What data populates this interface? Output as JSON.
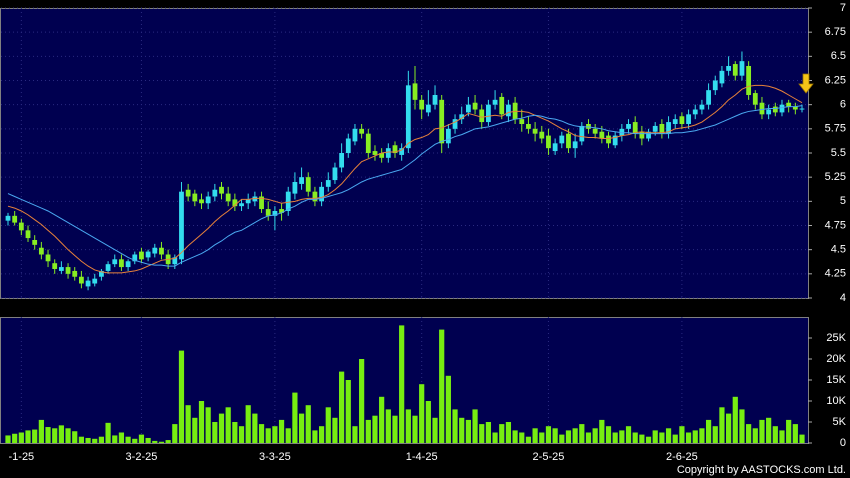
{
  "chart_data": [
    {
      "type": "candlestick",
      "categories": [
        null,
        null,
        "-1-25",
        null,
        null,
        null,
        null,
        null,
        null,
        null,
        null,
        null,
        null,
        null,
        null,
        null,
        null,
        null,
        null,
        null,
        "3-2-25",
        null,
        null,
        null,
        null,
        null,
        null,
        null,
        null,
        null,
        null,
        null,
        null,
        null,
        null,
        null,
        null,
        null,
        null,
        null,
        "3-3-25",
        null,
        null,
        null,
        null,
        null,
        null,
        null,
        null,
        null,
        null,
        null,
        null,
        null,
        null,
        null,
        null,
        null,
        null,
        null,
        null,
        null,
        "1-4-25",
        null,
        null,
        null,
        null,
        null,
        null,
        null,
        null,
        null,
        null,
        null,
        null,
        null,
        null,
        null,
        null,
        null,
        null,
        "2-5-25",
        null,
        null,
        null,
        null,
        null,
        null,
        null,
        null,
        null,
        null,
        null,
        null,
        null,
        null,
        null,
        null,
        null,
        null,
        null,
        "2-6-25",
        null,
        null,
        null,
        null,
        null,
        null,
        null,
        null,
        null,
        null,
        null,
        null,
        null,
        null,
        null,
        null,
        null,
        null
      ],
      "open": [
        4.8,
        4.85,
        4.78,
        4.7,
        4.6,
        4.52,
        4.45,
        4.36,
        4.28,
        4.32,
        4.28,
        4.22,
        4.12,
        4.15,
        4.22,
        4.28,
        4.35,
        4.4,
        4.32,
        4.38,
        4.48,
        4.42,
        4.46,
        4.52,
        4.45,
        4.35,
        4.4,
        5.12,
        5.08,
        5.02,
        4.98,
        5.05,
        5.15,
        5.08,
        5.02,
        4.95,
        4.98,
        5.0,
        5.05,
        4.92,
        4.85,
        4.92,
        4.9,
        5.08,
        5.18,
        5.25,
        5.1,
        5.0,
        5.15,
        5.22,
        5.35,
        5.5,
        5.62,
        5.75,
        5.7,
        5.52,
        5.5,
        5.45,
        5.58,
        5.48,
        5.55,
        6.22,
        6.05,
        5.92,
        6.0,
        6.05,
        5.6,
        5.75,
        5.85,
        5.92,
        6.02,
        5.95,
        5.82,
        6.0,
        6.08,
        5.88,
        6.02,
        5.85,
        5.8,
        5.75,
        5.72,
        5.68,
        5.52,
        5.6,
        5.7,
        5.55,
        5.62,
        5.8,
        5.75,
        5.72,
        5.68,
        5.58,
        5.68,
        5.75,
        5.82,
        5.72,
        5.65,
        5.72,
        5.8,
        5.7,
        5.8,
        5.88,
        5.8,
        5.9,
        5.95,
        6.0,
        6.15,
        6.22,
        6.35,
        6.42,
        6.3,
        6.4,
        6.12,
        6.02,
        5.9,
        5.98,
        5.92,
        6.02,
        5.98,
        5.95
      ],
      "high": [
        4.88,
        4.9,
        4.82,
        4.75,
        4.65,
        4.58,
        4.5,
        4.4,
        4.38,
        4.36,
        4.32,
        4.28,
        4.22,
        4.25,
        4.3,
        4.38,
        4.45,
        4.45,
        4.4,
        4.48,
        4.52,
        4.5,
        4.56,
        4.58,
        4.5,
        4.45,
        5.2,
        5.18,
        5.12,
        5.08,
        5.1,
        5.18,
        5.2,
        5.15,
        5.08,
        5.02,
        5.08,
        5.1,
        5.1,
        5.0,
        4.95,
        4.98,
        5.15,
        5.3,
        5.35,
        5.3,
        5.15,
        5.2,
        5.3,
        5.4,
        5.6,
        5.7,
        5.8,
        5.8,
        5.75,
        5.58,
        5.55,
        5.6,
        5.62,
        5.6,
        6.35,
        6.4,
        6.1,
        6.15,
        6.2,
        6.1,
        5.8,
        5.9,
        5.98,
        6.08,
        6.1,
        6.0,
        6.05,
        6.15,
        6.12,
        6.05,
        6.08,
        5.95,
        5.88,
        5.82,
        5.78,
        5.75,
        5.65,
        5.72,
        5.75,
        5.7,
        5.82,
        5.85,
        5.8,
        5.78,
        5.72,
        5.72,
        5.8,
        5.85,
        5.88,
        5.78,
        5.75,
        5.82,
        5.85,
        5.88,
        5.9,
        5.92,
        5.95,
        6.0,
        6.05,
        6.22,
        6.3,
        6.4,
        6.5,
        6.45,
        6.55,
        6.45,
        6.15,
        6.08,
        6.0,
        6.02,
        6.05,
        6.05,
        6.02,
        6.0
      ],
      "low": [
        4.75,
        4.75,
        4.65,
        4.58,
        4.5,
        4.4,
        4.32,
        4.25,
        4.25,
        4.2,
        4.18,
        4.1,
        4.08,
        4.12,
        4.18,
        4.25,
        4.32,
        4.28,
        4.28,
        4.35,
        4.36,
        4.38,
        4.42,
        4.4,
        4.3,
        4.3,
        4.35,
        5.0,
        4.95,
        4.92,
        4.92,
        5.0,
        5.02,
        4.95,
        4.9,
        4.9,
        4.92,
        4.95,
        4.88,
        4.8,
        4.7,
        4.8,
        4.85,
        5.02,
        5.12,
        5.05,
        4.95,
        4.95,
        5.1,
        5.18,
        5.3,
        5.45,
        5.58,
        5.65,
        5.45,
        5.42,
        5.4,
        5.4,
        5.45,
        5.42,
        5.5,
        5.95,
        5.85,
        5.88,
        5.95,
        5.5,
        5.55,
        5.7,
        5.8,
        5.88,
        5.9,
        5.75,
        5.78,
        5.95,
        5.85,
        5.82,
        5.8,
        5.72,
        5.7,
        5.62,
        5.6,
        5.48,
        5.48,
        5.55,
        5.5,
        5.45,
        5.58,
        5.7,
        5.65,
        5.6,
        5.55,
        5.55,
        5.62,
        5.7,
        5.65,
        5.58,
        5.62,
        5.68,
        5.65,
        5.65,
        5.75,
        5.75,
        5.75,
        5.85,
        5.9,
        5.95,
        6.1,
        6.18,
        6.3,
        6.25,
        6.25,
        6.05,
        5.95,
        5.85,
        5.85,
        5.88,
        5.88,
        5.92,
        5.9,
        5.92
      ],
      "close": [
        4.85,
        4.78,
        4.7,
        4.62,
        4.55,
        4.45,
        4.38,
        4.3,
        4.32,
        4.25,
        4.22,
        4.15,
        4.18,
        4.2,
        4.28,
        4.35,
        4.4,
        4.32,
        4.38,
        4.45,
        4.4,
        4.48,
        4.52,
        4.45,
        4.35,
        4.42,
        5.1,
        5.05,
        5.0,
        4.98,
        5.05,
        5.12,
        5.08,
        5.0,
        4.95,
        4.98,
        5.02,
        5.05,
        4.92,
        4.85,
        4.9,
        4.88,
        5.1,
        5.2,
        5.25,
        5.1,
        5.0,
        5.15,
        5.22,
        5.35,
        5.5,
        5.65,
        5.75,
        5.7,
        5.5,
        5.48,
        5.45,
        5.55,
        5.5,
        5.55,
        6.2,
        6.05,
        5.95,
        6.0,
        6.1,
        5.6,
        5.75,
        5.85,
        5.9,
        6.0,
        5.95,
        5.82,
        6.0,
        6.05,
        5.9,
        6.0,
        5.85,
        5.8,
        5.75,
        5.7,
        5.65,
        5.55,
        5.6,
        5.68,
        5.55,
        5.62,
        5.78,
        5.75,
        5.7,
        5.65,
        5.6,
        5.68,
        5.75,
        5.8,
        5.7,
        5.65,
        5.72,
        5.78,
        5.7,
        5.82,
        5.85,
        5.8,
        5.9,
        5.95,
        6.0,
        6.15,
        6.25,
        6.35,
        6.4,
        6.3,
        6.45,
        6.1,
        6.0,
        5.9,
        5.95,
        5.92,
        6.0,
        5.98,
        5.95,
        5.96
      ],
      "up_color": "#33ddee",
      "down_color": "#88ee22",
      "moving_averages": [
        {
          "color": "#e8823a",
          "values": [
            4.95,
            4.93,
            4.9,
            4.86,
            4.81,
            4.76,
            4.7,
            4.64,
            4.57,
            4.5,
            4.44,
            4.38,
            4.33,
            4.29,
            4.27,
            4.26,
            4.26,
            4.26,
            4.27,
            4.28,
            4.3,
            4.33,
            4.36,
            4.39,
            4.4,
            4.41,
            4.47,
            4.54,
            4.6,
            4.66,
            4.72,
            4.79,
            4.85,
            4.9,
            4.96,
            5.02,
            5.02,
            5.03,
            5.03,
            5.02,
            5.0,
            4.98,
            4.99,
            5.0,
            5.02,
            5.03,
            5.03,
            5.04,
            5.07,
            5.12,
            5.18,
            5.26,
            5.34,
            5.41,
            5.44,
            5.47,
            5.5,
            5.51,
            5.51,
            5.53,
            5.6,
            5.64,
            5.66,
            5.69,
            5.75,
            5.76,
            5.79,
            5.82,
            5.86,
            5.91,
            5.89,
            5.87,
            5.88,
            5.89,
            5.88,
            5.92,
            5.93,
            5.93,
            5.92,
            5.89,
            5.86,
            5.83,
            5.79,
            5.75,
            5.72,
            5.68,
            5.67,
            5.66,
            5.66,
            5.65,
            5.65,
            5.66,
            5.68,
            5.69,
            5.71,
            5.72,
            5.71,
            5.71,
            5.71,
            5.72,
            5.75,
            5.76,
            5.77,
            5.79,
            5.82,
            5.87,
            5.92,
            5.98,
            6.05,
            6.1,
            6.16,
            6.19,
            6.2,
            6.2,
            6.19,
            6.17,
            6.14,
            6.1,
            6.06,
            6.02
          ]
        },
        {
          "color": "#4aa8f0",
          "values": [
            5.08,
            5.05,
            5.02,
            4.99,
            4.96,
            4.93,
            4.9,
            4.86,
            4.82,
            4.78,
            4.74,
            4.7,
            4.66,
            4.62,
            4.58,
            4.54,
            4.5,
            4.46,
            4.42,
            4.39,
            4.37,
            4.35,
            4.34,
            4.34,
            4.33,
            4.33,
            4.37,
            4.4,
            4.43,
            4.46,
            4.5,
            4.55,
            4.59,
            4.64,
            4.68,
            4.7,
            4.74,
            4.78,
            4.82,
            4.85,
            4.86,
            4.88,
            4.92,
            4.95,
            4.99,
            5.02,
            5.02,
            5.03,
            5.05,
            5.07,
            5.09,
            5.12,
            5.16,
            5.2,
            5.23,
            5.25,
            5.27,
            5.29,
            5.31,
            5.33,
            5.38,
            5.43,
            5.49,
            5.54,
            5.59,
            5.62,
            5.64,
            5.67,
            5.69,
            5.72,
            5.75,
            5.76,
            5.77,
            5.79,
            5.81,
            5.83,
            5.85,
            5.86,
            5.88,
            5.89,
            5.88,
            5.86,
            5.85,
            5.83,
            5.8,
            5.78,
            5.77,
            5.77,
            5.76,
            5.75,
            5.73,
            5.72,
            5.71,
            5.71,
            5.7,
            5.7,
            5.7,
            5.7,
            5.7,
            5.7,
            5.71,
            5.71,
            5.72,
            5.73,
            5.75,
            5.77,
            5.79,
            5.82,
            5.85,
            5.88,
            5.91,
            5.93,
            5.94,
            5.95,
            5.96,
            5.96,
            5.97,
            5.98,
            5.98,
            5.99
          ]
        }
      ],
      "ylim": [
        4,
        7
      ],
      "yticks": [
        4,
        4.25,
        4.5,
        4.75,
        5,
        5.25,
        5.5,
        5.75,
        6,
        6.25,
        6.5,
        6.75,
        7
      ],
      "grid": true
    },
    {
      "type": "bar",
      "values": [
        1800,
        2200,
        2500,
        3000,
        3200,
        5500,
        3800,
        3500,
        4200,
        3500,
        2800,
        1500,
        1200,
        1000,
        1500,
        4800,
        1800,
        2500,
        1500,
        1000,
        2000,
        1200,
        500,
        300,
        700,
        4500,
        22000,
        9000,
        6000,
        10000,
        8500,
        5000,
        7000,
        8500,
        5000,
        4000,
        9000,
        7000,
        4500,
        3500,
        4000,
        5500,
        3500,
        12000,
        7000,
        9000,
        3000,
        4000,
        8500,
        6000,
        17000,
        15000,
        4000,
        20000,
        5500,
        6500,
        11000,
        8000,
        6500,
        28000,
        8000,
        6500,
        14000,
        10000,
        6000,
        27000,
        16000,
        8000,
        6000,
        5500,
        8000,
        4500,
        5000,
        2500,
        4500,
        5000,
        3000,
        2500,
        1500,
        3500,
        2500,
        4000,
        3500,
        2000,
        3000,
        3500,
        4500,
        2500,
        3500,
        5500,
        4000,
        2500,
        3000,
        4000,
        2500,
        2000,
        1500,
        3000,
        2500,
        3500,
        2000,
        4000,
        2500,
        3000,
        3500,
        5500,
        4000,
        8500,
        7000,
        11000,
        8000,
        4500,
        3500,
        5500,
        6000,
        4000,
        3000,
        5500,
        4500,
        2000
      ],
      "color": "#77ee11",
      "ylim": [
        0,
        30000
      ],
      "yticks": [
        0,
        {
          "value": 5000,
          "label": "5K"
        },
        {
          "value": 10000,
          "label": "10K"
        },
        {
          "value": 15000,
          "label": "15K"
        },
        {
          "value": 20000,
          "label": "20K"
        },
        {
          "value": 25000,
          "label": "25K"
        }
      ],
      "annotations": [
        "Copyright by AASTOCKS.com Ltd."
      ]
    }
  ]
}
